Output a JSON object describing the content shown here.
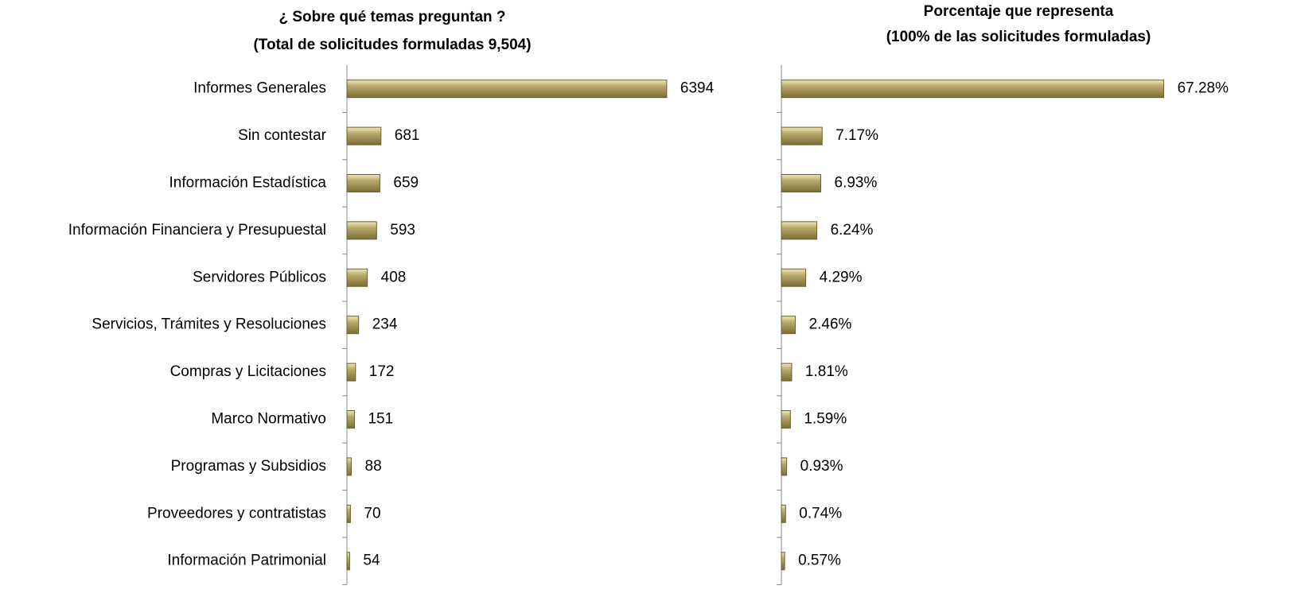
{
  "chart_data": [
    {
      "type": "bar",
      "title": [
        "¿ Sobre qué temas preguntan ?",
        "(Total de solicitudes formuladas 9,504)"
      ],
      "categories": [
        "Informes Generales",
        "Sin contestar",
        "Información Estadística",
        "Información Financiera y Presupuestal",
        "Servidores Públicos",
        "Servicios, Trámites y Resoluciones",
        "Compras y Licitaciones",
        "Marco Normativo",
        "Programas y Subsidios",
        "Proveedores y contratistas",
        "Información Patrimonial"
      ],
      "values": [
        6394,
        681,
        659,
        593,
        408,
        234,
        172,
        151,
        88,
        70,
        54
      ],
      "color": "#a89a5b",
      "xlim": [
        0,
        7000
      ]
    },
    {
      "type": "bar",
      "title": [
        "Porcentaje que representa",
        "(100% de las solicitudes formuladas)"
      ],
      "values": [
        67.28,
        7.17,
        6.93,
        6.24,
        4.29,
        2.46,
        1.81,
        1.59,
        0.93,
        0.74,
        0.57
      ],
      "value_labels": [
        "67.28%",
        "7.17%",
        "6.93%",
        "6.24%",
        "4.29%",
        "2.46%",
        "1.81%",
        "1.59%",
        "0.93%",
        "0.74%",
        "0.57%"
      ],
      "color": "#a89a5b",
      "xlim": [
        0,
        70
      ]
    }
  ]
}
